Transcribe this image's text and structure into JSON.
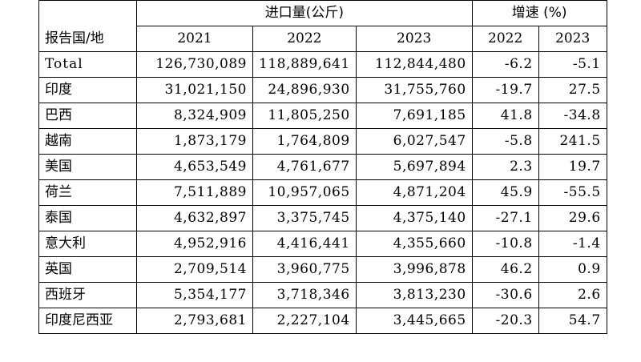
{
  "header": {
    "row_label": "报告国/地",
    "import_group": "进口量(公斤)",
    "growth_group": "增速 (%)",
    "years_import": [
      "2021",
      "2022",
      "2023"
    ],
    "years_growth": [
      "2022",
      "2023"
    ]
  },
  "rows": [
    {
      "name": "Total",
      "v2021": "126,730,089",
      "v2022": "118,889,641",
      "v2023": "112,844,480",
      "g2022": "-6.2",
      "g2023": "-5.1"
    },
    {
      "name": "印度",
      "v2021": "31,021,150",
      "v2022": "24,896,930",
      "v2023": "31,755,760",
      "g2022": "-19.7",
      "g2023": "27.5"
    },
    {
      "name": "巴西",
      "v2021": "8,324,909",
      "v2022": "11,805,250",
      "v2023": "7,691,185",
      "g2022": "41.8",
      "g2023": "-34.8"
    },
    {
      "name": "越南",
      "v2021": "1,873,179",
      "v2022": "1,764,809",
      "v2023": "6,027,547",
      "g2022": "-5.8",
      "g2023": "241.5"
    },
    {
      "name": "美国",
      "v2021": "4,653,549",
      "v2022": "4,761,677",
      "v2023": "5,697,894",
      "g2022": "2.3",
      "g2023": "19.7"
    },
    {
      "name": "荷兰",
      "v2021": "7,511,889",
      "v2022": "10,957,065",
      "v2023": "4,871,204",
      "g2022": "45.9",
      "g2023": "-55.5"
    },
    {
      "name": "泰国",
      "v2021": "4,632,897",
      "v2022": "3,375,745",
      "v2023": "4,375,140",
      "g2022": "-27.1",
      "g2023": "29.6"
    },
    {
      "name": "意大利",
      "v2021": "4,952,916",
      "v2022": "4,416,441",
      "v2023": "4,355,660",
      "g2022": "-10.8",
      "g2023": "-1.4"
    },
    {
      "name": "英国",
      "v2021": "2,709,514",
      "v2022": "3,960,775",
      "v2023": "3,996,878",
      "g2022": "46.2",
      "g2023": "0.9"
    },
    {
      "name": "西班牙",
      "v2021": "5,354,177",
      "v2022": "3,718,346",
      "v2023": "3,813,230",
      "g2022": "-30.6",
      "g2023": "2.6"
    },
    {
      "name": "印度尼西亚",
      "v2021": "2,793,681",
      "v2022": "2,227,104",
      "v2023": "3,445,665",
      "g2022": "-20.3",
      "g2023": "54.7"
    }
  ]
}
